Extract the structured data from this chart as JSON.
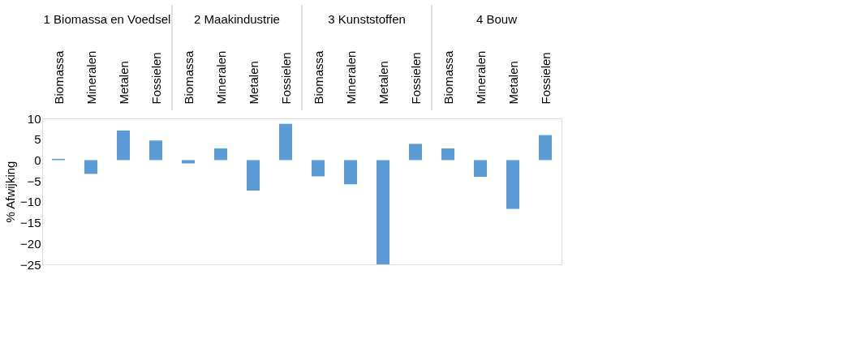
{
  "chart_data": {
    "type": "bar",
    "ylabel": "% Afwijking",
    "categories": [
      "Biomassa",
      "Mineralen",
      "Metalen",
      "Fossielen",
      "Biomassa",
      "Mineralen",
      "Metalen",
      "Fossielen",
      "Biomassa",
      "Mineralen",
      "Metalen",
      "Fossielen",
      "Biomassa",
      "Mineralen",
      "Metalen",
      "Fossielen"
    ],
    "values": [
      0.3,
      -3.3,
      7.1,
      4.7,
      -0.8,
      2.8,
      -7.3,
      8.7,
      -3.9,
      -5.8,
      -25,
      3.9,
      2.8,
      -4,
      -11.7,
      6
    ],
    "color": "#5b9bd5",
    "annotations": [
      "1 Biomassa en Voedsel",
      "2 Maakindustrie",
      "3 Kunststoffen",
      "4 Bouw"
    ],
    "ylim": [
      -25,
      10
    ],
    "yticks": [
      -25,
      -20,
      -15,
      -10,
      -5,
      0,
      5,
      10
    ],
    "grid": false
  }
}
